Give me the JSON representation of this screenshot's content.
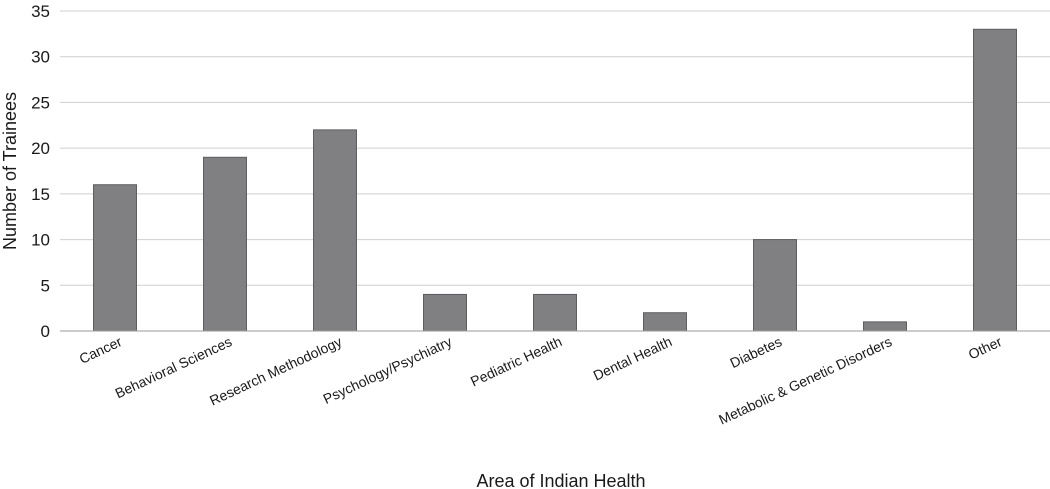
{
  "chart_data": {
    "type": "bar",
    "title": "",
    "xlabel": "Area of Indian Health",
    "ylabel": "Number of Trainees",
    "ylim": [
      0,
      35
    ],
    "yticks": [
      0,
      5,
      10,
      15,
      20,
      25,
      30,
      35
    ],
    "grid": true,
    "categories": [
      "Cancer",
      "Behavioral Sciences",
      "Research Methodology",
      "Psychology/Psychiatry",
      "Pediatric Health",
      "Dental Health",
      "Diabetes",
      "Metabolic & Genetic Disorders",
      "Other"
    ],
    "values": [
      16,
      19,
      22,
      4,
      4,
      2,
      10,
      1,
      33
    ],
    "bar_color": "#808083"
  }
}
